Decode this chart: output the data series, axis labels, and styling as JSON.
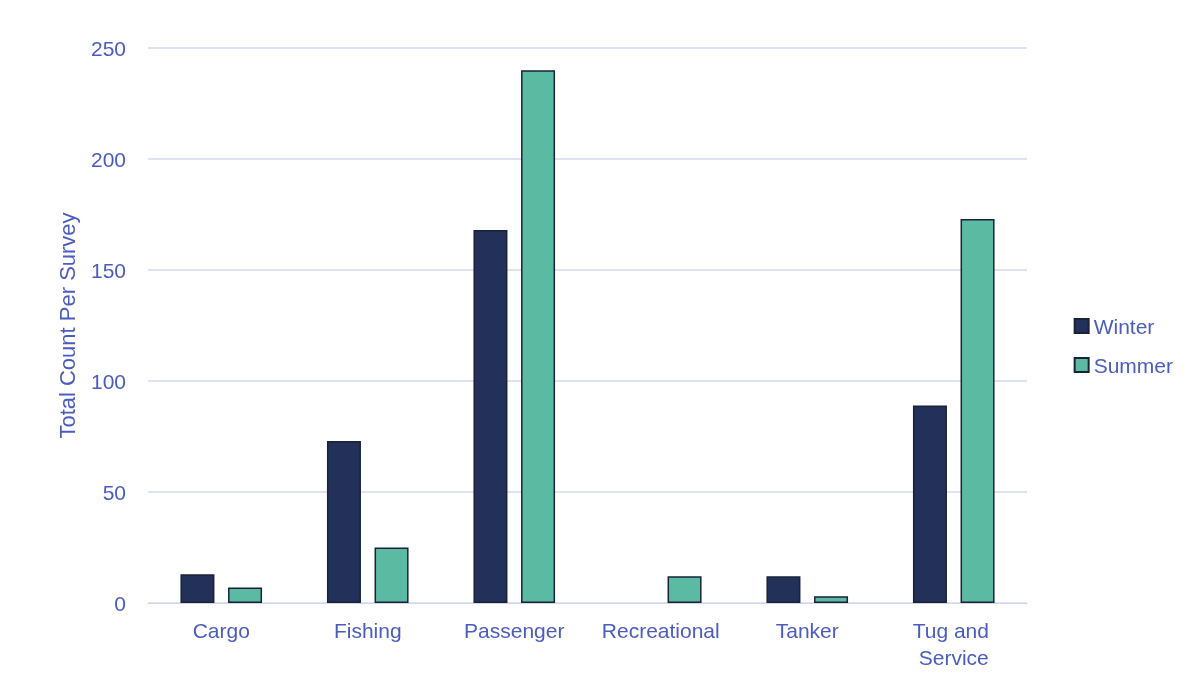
{
  "chart_data": {
    "type": "bar",
    "ylabel": "Total Count Per Survey",
    "categories": [
      "Cargo",
      "Fishing",
      "Passenger",
      "Recreational",
      "Tanker",
      "Tug and Service"
    ],
    "series": [
      {
        "name": "Winter",
        "color": "#22305a",
        "values": [
          13,
          73,
          168,
          null,
          12,
          89
        ]
      },
      {
        "name": "Summer",
        "color": "#5bbba2",
        "values": [
          7,
          25,
          240,
          12,
          3,
          173
        ]
      }
    ],
    "ylim": [
      0,
      250
    ],
    "yticks": [
      0,
      50,
      100,
      150,
      200,
      250
    ],
    "grid": "y",
    "legend": "right"
  }
}
